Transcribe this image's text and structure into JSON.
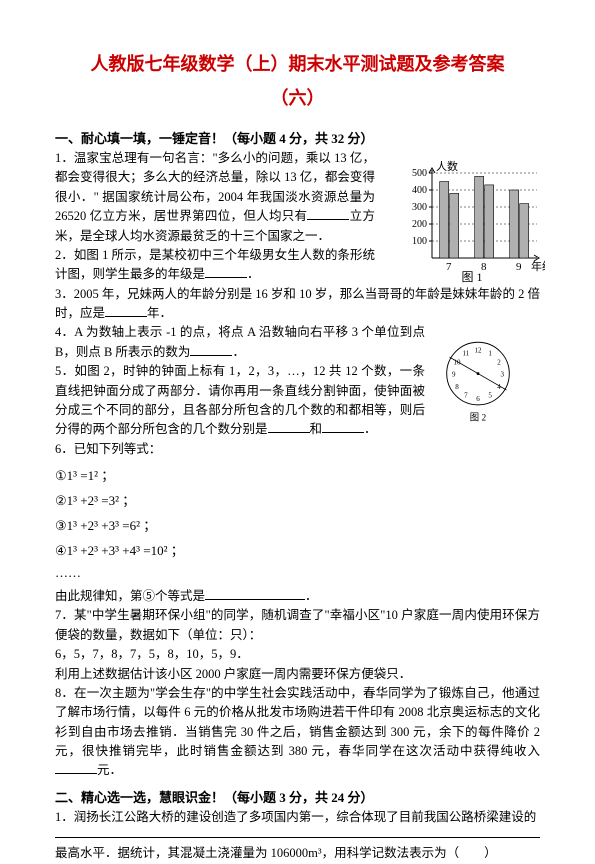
{
  "title_line1": "人教版七年级数学（上）期末水平测试题及参考答案",
  "title_line2": "（六）",
  "section1_head": "一、耐心填一填，一锤定音！（每小题 4 分，共 32 分）",
  "q1": "1．温家宝总理有一句名言：\"多么小的问题，乘以 13 亿，都会变得很大；多么大的经济总量，除以 13 亿，都会变得很小．\" 据国家统计局公布，2004 年我国淡水资源总量为 26520 亿立方米，居世界第四位，但人均只有",
  "q1_tail": "立方米，是全球人均水资源最贫乏的十三个国家之一．",
  "q2": "2．如图 1 所示，是某校初中三个年级男女生人数的条形统计图，则学生最多的年级是",
  "q2_tail": "．",
  "q3": "3．2005 年，兄妹两人的年龄分别是 16 岁和 10 岁，那么当哥哥的年龄是妹妹年龄的 2 倍时，应是",
  "q3_tail": "年．",
  "q4": "4．A 为数轴上表示 -1 的点，将点 A 沿数轴向右平移 3 个单位到点 B，则点 B 所表示的数为",
  "q4_tail": "．",
  "q5": "5．如图 2，时钟的钟面上标有 1，2，3，…，12 共 12 个数，一条直线把钟面分成了两部分．请你再用一条直线分割钟面，使钟面被分成三个不同的部分，且各部分所包含的几个数的和都相等，则后分得的两个部分所包含的几个数分别是",
  "q5_mid": "和",
  "q5_tail": "．",
  "q6_head": "6．已知下列等式：",
  "eq1": "①1³ =1² ；",
  "eq2": "②1³ +2³ =3² ；",
  "eq3": "③1³ +2³ +3³ =6² ；",
  "eq4": "④1³ +2³ +3³ +4³ =10² ；",
  "eq_dots": "……",
  "eq_tail": "由此规律知，第⑤个等式是",
  "eq_tail2": "．",
  "q7": "7．某\"中学生暑期环保小组\"的同学，随机调查了\"幸福小区\"10 户家庭一周内使用环保方便袋的数量，数据如下（单位：只）：",
  "q7_data": "6，5，7，8，7，5，8，10，5，9．",
  "q7_tail": "利用上述数据估计该小区 2000 户家庭一周内需要环保方便袋只．",
  "q8": "8．在一次主题为\"学会生存\"的中学生社会实践活动中，春华同学为了锻炼自己，他通过了解市场行情，以每件 6 元的价格从批发市场购进若干件印有 2008 北京奥运标志的文化衫到自由市场去推销．当销售完 30 件之后，销售金额达到 300 元，余下的每件降价 2 元，很快推销完毕，此时销售金额达到 380 元，春华同学在这次活动中获得纯收入",
  "q8_tail": "元．",
  "section2_head": "二、精心选一选，慧眼识金！（每小题 3 分，共 24 分）",
  "q2_1": "1．润扬长江公路大桥的建设创造了多项国内第一，综合体现了目前我国公路桥梁建设的",
  "q2_1b": "最高水平．据统计，其混凝土浇灌量为 106000m³，用科学记数法表示为（　　）",
  "chart1": {
    "ylabel": "人数",
    "xlabel": "年级",
    "categories": [
      "7",
      "8",
      "9"
    ],
    "bar_pairs": [
      {
        "a": 450,
        "b": 380
      },
      {
        "a": 480,
        "b": 430
      },
      {
        "a": 400,
        "b": 320
      }
    ],
    "ylim": [
      0,
      500
    ],
    "ytick_step": 100,
    "bar_fill": "#b0b0b0",
    "bar_stroke": "#000000",
    "axis_color": "#000000",
    "label_fontsize": 11,
    "fig_label": "图 1"
  },
  "clock": {
    "numbers": [
      "12",
      "1",
      "2",
      "3",
      "4",
      "5",
      "6",
      "7",
      "8",
      "9",
      "10",
      "11"
    ],
    "split_line_from": 10,
    "split_line_to": 4,
    "stroke": "#000000",
    "fig_label": "图 2"
  }
}
